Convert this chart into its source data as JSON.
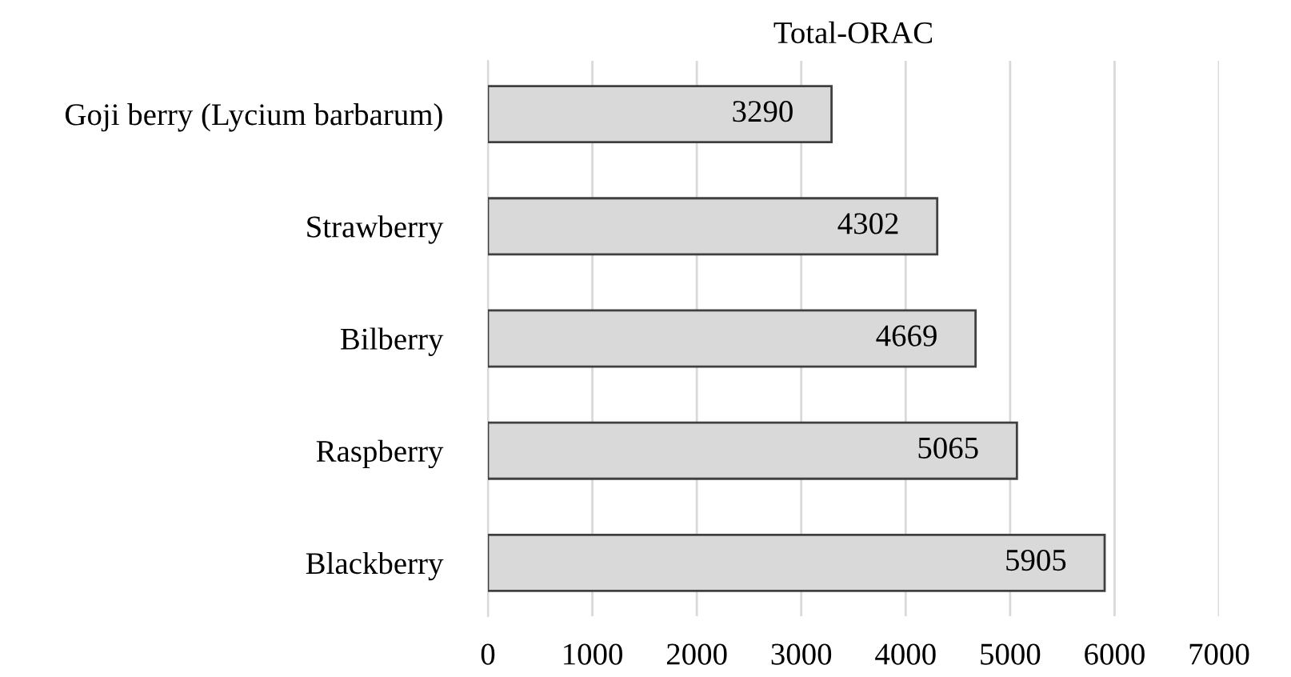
{
  "chart_data": {
    "type": "bar",
    "orientation": "horizontal",
    "title": "Total-ORAC",
    "categories": [
      "Goji berry (Lycium barbarum)",
      "Strawberry",
      "Bilberry",
      "Raspberry",
      "Blackberry"
    ],
    "values": [
      3290,
      4302,
      4669,
      5065,
      5905
    ],
    "color": "#d9d9d9",
    "xlim": [
      0,
      7000
    ],
    "xticks": [
      0,
      1000,
      2000,
      3000,
      4000,
      5000,
      6000,
      7000
    ],
    "grid": "x",
    "data_labels": true
  }
}
